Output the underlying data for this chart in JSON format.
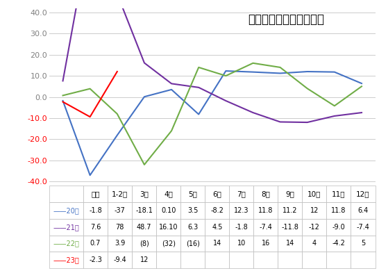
{
  "title": "汽车消费额月度增速走势",
  "x_labels": [
    "年累",
    "1-2月",
    "3月",
    "4月",
    "5月",
    "6月",
    "7月",
    "8月",
    "9月",
    "10月",
    "11月",
    "12月"
  ],
  "series": [
    {
      "name": "20年",
      "color": "#4472C4",
      "data": [
        -1.8,
        -37.0,
        -18.1,
        0.1,
        3.5,
        -8.2,
        12.3,
        11.8,
        11.2,
        12.0,
        11.8,
        6.4
      ]
    },
    {
      "name": "21年",
      "color": "#7030A0",
      "data": [
        7.6,
        78.0,
        48.7,
        16.1,
        6.3,
        4.5,
        -1.8,
        -7.4,
        -11.8,
        -12.0,
        -9.0,
        -7.4
      ]
    },
    {
      "name": "22年",
      "color": "#70AD47",
      "data": [
        0.7,
        3.9,
        -8.0,
        -32.0,
        -16.0,
        14.0,
        10.0,
        16.0,
        14.0,
        4.0,
        -4.2,
        5.0
      ]
    },
    {
      "name": "23年",
      "color": "#FF0000",
      "data": [
        -2.3,
        -9.4,
        12.0,
        null,
        null,
        null,
        null,
        null,
        null,
        null,
        null,
        null
      ]
    }
  ],
  "ylim": [
    -42,
    42
  ],
  "yticks": [
    -40.0,
    -30.0,
    -20.0,
    -10.0,
    0.0,
    10.0,
    20.0,
    30.0,
    40.0
  ],
  "table_headers": [
    "年累",
    "1-2月",
    "3月",
    "4月",
    "5月",
    "6月",
    "7月",
    "8月",
    "9月",
    "10月",
    "11月",
    "12月"
  ],
  "table_rows": [
    [
      "20年",
      "-1.8",
      "-37",
      "-18.1",
      "0.10",
      "3.5",
      "-8.2",
      "12.3",
      "11.8",
      "11.2",
      "12",
      "11.8",
      "6.4"
    ],
    [
      "21年",
      "7.6",
      "78",
      "48.7",
      "16.10",
      "6.3",
      "4.5",
      "-1.8",
      "-7.4",
      "-11.8",
      "-12",
      "-9.0",
      "-7.4"
    ],
    [
      "22年",
      "0.7",
      "3.9",
      "(8)",
      "(32)",
      "(16)",
      "14",
      "10",
      "16",
      "14",
      "4",
      "-4.2",
      "5"
    ],
    [
      "23年",
      "-2.3",
      "-9.4",
      "12",
      "",
      "",
      "",
      "",
      "",
      "",
      "",
      "",
      ""
    ]
  ],
  "row_colors": [
    "#4472C4",
    "#7030A0",
    "#70AD47",
    "#FF0000"
  ],
  "background_color": "#FFFFFF",
  "grid_color": "#CCCCCC",
  "ytick_color_positive": "#808080",
  "ytick_color_negative": "#FF0000",
  "title_fontsize": 12,
  "line_fontsize": 7.0,
  "header_fontsize": 7.5
}
